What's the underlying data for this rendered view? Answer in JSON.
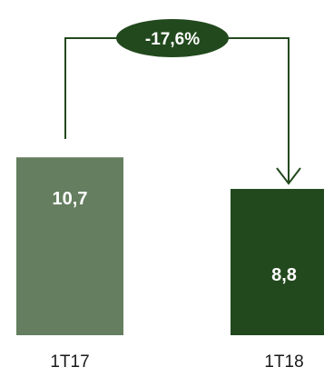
{
  "chart_data": {
    "type": "bar",
    "categories": [
      "1T17",
      "1T18"
    ],
    "values": [
      10.7,
      8.8
    ],
    "value_labels": [
      "10,7",
      "8,8"
    ],
    "change_label": "-17,6%",
    "ylim": [
      0,
      12
    ],
    "grid": false,
    "colors": {
      "bars": [
        "#647e5f",
        "#22491d"
      ],
      "connector": "#22491d",
      "badge": "#22491d"
    }
  }
}
